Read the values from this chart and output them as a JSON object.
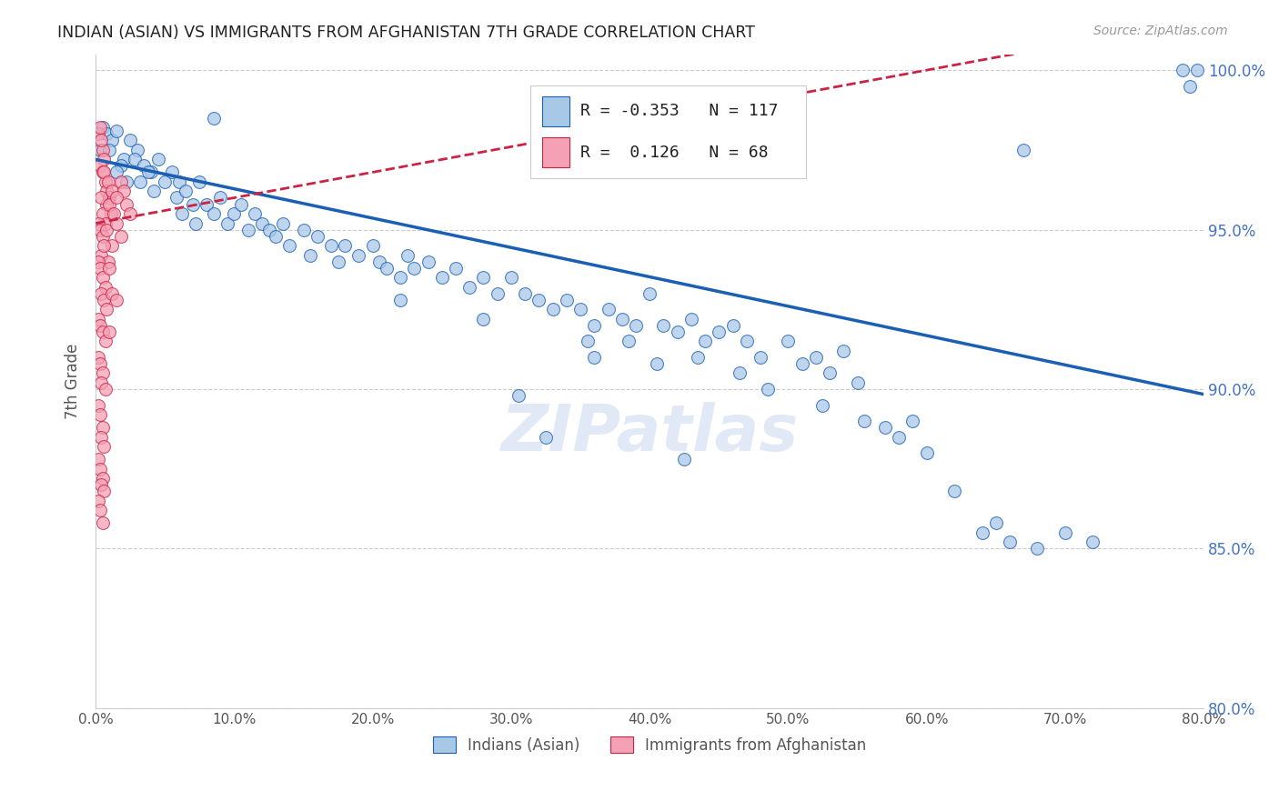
{
  "title": "INDIAN (ASIAN) VS IMMIGRANTS FROM AFGHANISTAN 7TH GRADE CORRELATION CHART",
  "source": "Source: ZipAtlas.com",
  "ylabel": "7th Grade",
  "r_blue": -0.353,
  "n_blue": 117,
  "r_pink": 0.126,
  "n_pink": 68,
  "xmin": 0.0,
  "xmax": 80.0,
  "ymin": 80.0,
  "ymax": 100.5,
  "yticks": [
    80.0,
    85.0,
    90.0,
    95.0,
    100.0
  ],
  "xticks": [
    0.0,
    10.0,
    20.0,
    30.0,
    40.0,
    50.0,
    60.0,
    70.0,
    80.0
  ],
  "color_blue": "#a8c8e8",
  "color_pink": "#f4a0b5",
  "trendline_blue": "#1a5fb4",
  "trendline_pink": "#cc2244",
  "watermark": "ZIPatlas",
  "blue_intercept": 97.2,
  "blue_slope": -0.092,
  "pink_intercept": 95.2,
  "pink_slope": 0.08,
  "blue_points": [
    [
      0.5,
      98.2
    ],
    [
      0.8,
      98.0
    ],
    [
      1.2,
      97.8
    ],
    [
      1.5,
      98.1
    ],
    [
      0.3,
      97.5
    ],
    [
      2.0,
      97.2
    ],
    [
      2.5,
      97.8
    ],
    [
      3.0,
      97.5
    ],
    [
      1.8,
      97.0
    ],
    [
      2.8,
      97.2
    ],
    [
      3.5,
      97.0
    ],
    [
      4.0,
      96.8
    ],
    [
      3.2,
      96.5
    ],
    [
      4.5,
      97.2
    ],
    [
      5.0,
      96.5
    ],
    [
      1.0,
      97.5
    ],
    [
      1.5,
      96.8
    ],
    [
      2.2,
      96.5
    ],
    [
      3.8,
      96.8
    ],
    [
      4.2,
      96.2
    ],
    [
      5.5,
      96.8
    ],
    [
      6.0,
      96.5
    ],
    [
      5.8,
      96.0
    ],
    [
      6.5,
      96.2
    ],
    [
      7.0,
      95.8
    ],
    [
      6.2,
      95.5
    ],
    [
      7.5,
      96.5
    ],
    [
      8.0,
      95.8
    ],
    [
      7.2,
      95.2
    ],
    [
      8.5,
      95.5
    ],
    [
      9.0,
      96.0
    ],
    [
      9.5,
      95.2
    ],
    [
      10.0,
      95.5
    ],
    [
      10.5,
      95.8
    ],
    [
      11.0,
      95.0
    ],
    [
      11.5,
      95.5
    ],
    [
      12.0,
      95.2
    ],
    [
      12.5,
      95.0
    ],
    [
      13.0,
      94.8
    ],
    [
      13.5,
      95.2
    ],
    [
      14.0,
      94.5
    ],
    [
      15.0,
      95.0
    ],
    [
      15.5,
      94.2
    ],
    [
      16.0,
      94.8
    ],
    [
      17.0,
      94.5
    ],
    [
      17.5,
      94.0
    ],
    [
      18.0,
      94.5
    ],
    [
      19.0,
      94.2
    ],
    [
      20.0,
      94.5
    ],
    [
      20.5,
      94.0
    ],
    [
      21.0,
      93.8
    ],
    [
      22.0,
      93.5
    ],
    [
      22.5,
      94.2
    ],
    [
      23.0,
      93.8
    ],
    [
      24.0,
      94.0
    ],
    [
      25.0,
      93.5
    ],
    [
      26.0,
      93.8
    ],
    [
      27.0,
      93.2
    ],
    [
      28.0,
      93.5
    ],
    [
      29.0,
      93.0
    ],
    [
      30.0,
      93.5
    ],
    [
      31.0,
      93.0
    ],
    [
      32.0,
      92.8
    ],
    [
      33.0,
      92.5
    ],
    [
      34.0,
      92.8
    ],
    [
      35.0,
      92.5
    ],
    [
      36.0,
      92.0
    ],
    [
      37.0,
      92.5
    ],
    [
      38.0,
      92.2
    ],
    [
      39.0,
      92.0
    ],
    [
      40.0,
      93.0
    ],
    [
      41.0,
      92.0
    ],
    [
      42.0,
      91.8
    ],
    [
      43.0,
      92.2
    ],
    [
      44.0,
      91.5
    ],
    [
      45.0,
      91.8
    ],
    [
      46.0,
      92.0
    ],
    [
      47.0,
      91.5
    ],
    [
      48.0,
      91.0
    ],
    [
      50.0,
      91.5
    ],
    [
      51.0,
      90.8
    ],
    [
      52.0,
      91.0
    ],
    [
      53.0,
      90.5
    ],
    [
      54.0,
      91.2
    ],
    [
      55.0,
      90.2
    ],
    [
      36.0,
      91.0
    ],
    [
      38.5,
      91.5
    ],
    [
      40.5,
      90.8
    ],
    [
      43.5,
      91.0
    ],
    [
      46.5,
      90.5
    ],
    [
      48.5,
      90.0
    ],
    [
      52.5,
      89.5
    ],
    [
      55.5,
      89.0
    ],
    [
      57.0,
      88.8
    ],
    [
      58.0,
      88.5
    ],
    [
      59.0,
      89.0
    ],
    [
      60.0,
      88.0
    ],
    [
      62.0,
      86.8
    ],
    [
      64.0,
      85.5
    ],
    [
      65.0,
      85.8
    ],
    [
      66.0,
      85.2
    ],
    [
      68.0,
      85.0
    ],
    [
      70.0,
      85.5
    ],
    [
      72.0,
      85.2
    ],
    [
      28.0,
      92.2
    ],
    [
      32.5,
      88.5
    ],
    [
      30.5,
      89.8
    ],
    [
      42.5,
      87.8
    ],
    [
      35.5,
      91.5
    ],
    [
      22.0,
      92.8
    ],
    [
      78.5,
      100.0
    ],
    [
      79.5,
      100.0
    ],
    [
      79.0,
      99.5
    ],
    [
      67.0,
      97.5
    ],
    [
      8.5,
      98.5
    ]
  ],
  "pink_points": [
    [
      0.2,
      98.0
    ],
    [
      0.3,
      98.2
    ],
    [
      0.5,
      97.5
    ],
    [
      0.4,
      97.8
    ],
    [
      0.6,
      97.2
    ],
    [
      0.3,
      97.0
    ],
    [
      0.5,
      96.8
    ],
    [
      0.7,
      96.5
    ],
    [
      0.8,
      96.2
    ],
    [
      0.6,
      96.8
    ],
    [
      0.9,
      96.5
    ],
    [
      1.0,
      96.0
    ],
    [
      0.8,
      95.8
    ],
    [
      1.1,
      95.5
    ],
    [
      1.2,
      96.2
    ],
    [
      0.4,
      96.0
    ],
    [
      0.5,
      95.5
    ],
    [
      0.7,
      95.2
    ],
    [
      1.0,
      95.8
    ],
    [
      1.3,
      95.5
    ],
    [
      0.2,
      95.2
    ],
    [
      0.3,
      95.0
    ],
    [
      0.5,
      94.8
    ],
    [
      0.8,
      95.0
    ],
    [
      1.2,
      94.5
    ],
    [
      0.4,
      94.2
    ],
    [
      0.6,
      94.5
    ],
    [
      0.9,
      94.0
    ],
    [
      1.5,
      95.2
    ],
    [
      1.8,
      94.8
    ],
    [
      0.2,
      94.0
    ],
    [
      0.3,
      93.8
    ],
    [
      0.5,
      93.5
    ],
    [
      0.7,
      93.2
    ],
    [
      1.0,
      93.8
    ],
    [
      0.4,
      93.0
    ],
    [
      0.6,
      92.8
    ],
    [
      0.8,
      92.5
    ],
    [
      1.2,
      93.0
    ],
    [
      1.5,
      92.8
    ],
    [
      0.2,
      92.2
    ],
    [
      0.3,
      92.0
    ],
    [
      0.5,
      91.8
    ],
    [
      0.7,
      91.5
    ],
    [
      1.0,
      91.8
    ],
    [
      0.2,
      91.0
    ],
    [
      0.3,
      90.8
    ],
    [
      0.5,
      90.5
    ],
    [
      0.4,
      90.2
    ],
    [
      0.7,
      90.0
    ],
    [
      0.2,
      89.5
    ],
    [
      0.3,
      89.2
    ],
    [
      0.5,
      88.8
    ],
    [
      0.4,
      88.5
    ],
    [
      0.6,
      88.2
    ],
    [
      0.2,
      87.8
    ],
    [
      0.3,
      87.5
    ],
    [
      0.5,
      87.2
    ],
    [
      0.4,
      87.0
    ],
    [
      0.6,
      86.8
    ],
    [
      1.8,
      96.5
    ],
    [
      2.0,
      96.2
    ],
    [
      1.5,
      96.0
    ],
    [
      2.2,
      95.8
    ],
    [
      2.5,
      95.5
    ],
    [
      0.2,
      86.5
    ],
    [
      0.3,
      86.2
    ],
    [
      0.5,
      85.8
    ]
  ]
}
